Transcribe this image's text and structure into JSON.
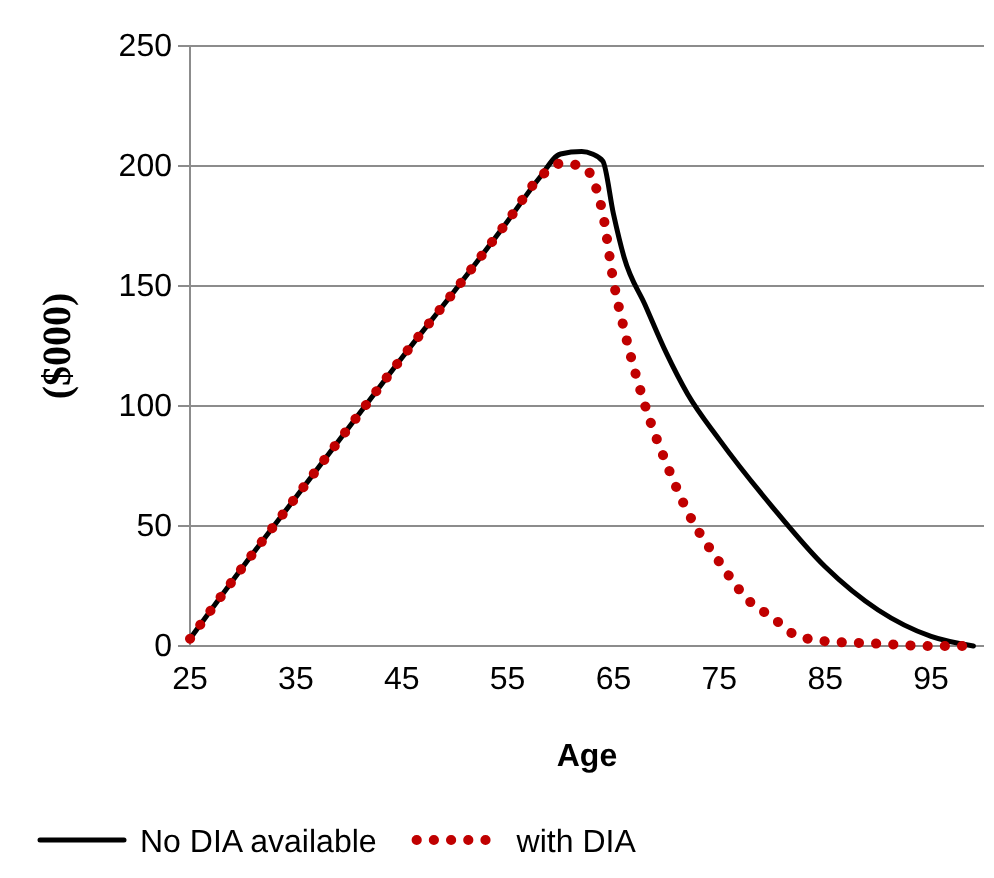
{
  "chart_data": {
    "type": "line",
    "xlabel": "Age",
    "ylabel": "($000)",
    "x": [
      25,
      30,
      35,
      40,
      45,
      50,
      55,
      58,
      60,
      62,
      63,
      64,
      65,
      66,
      68,
      70,
      72,
      75,
      80,
      85,
      90,
      95,
      99
    ],
    "xlim": [
      25,
      100
    ],
    "xticks": [
      25,
      35,
      45,
      55,
      65,
      75,
      85,
      95
    ],
    "ylim": [
      0,
      250
    ],
    "yticks": [
      0,
      50,
      100,
      150,
      200,
      250
    ],
    "grid": "y",
    "legend": "bottom",
    "series": [
      {
        "name": "No DIA available",
        "color": "#000000",
        "line_style": "solid",
        "values": [
          3,
          33,
          62,
          91,
          120,
          148,
          177,
          195,
          205,
          206,
          205,
          202,
          180,
          162,
          142,
          122,
          105,
          86,
          58,
          33,
          15,
          4,
          0
        ]
      },
      {
        "name": "with DIA",
        "color": "#c00000",
        "line_style": "dotted",
        "x": [
          25,
          30,
          35,
          40,
          45,
          50,
          55,
          58,
          60,
          62,
          63,
          64,
          65,
          66,
          68,
          70,
          72,
          75,
          78,
          80,
          82,
          85,
          90,
          95,
          98
        ],
        "values": [
          3,
          33,
          62,
          91,
          120,
          148,
          177,
          195,
          201,
          200,
          195,
          180,
          152,
          132,
          100,
          76,
          56,
          35,
          18,
          12,
          5,
          2,
          1,
          0,
          0
        ]
      }
    ]
  }
}
